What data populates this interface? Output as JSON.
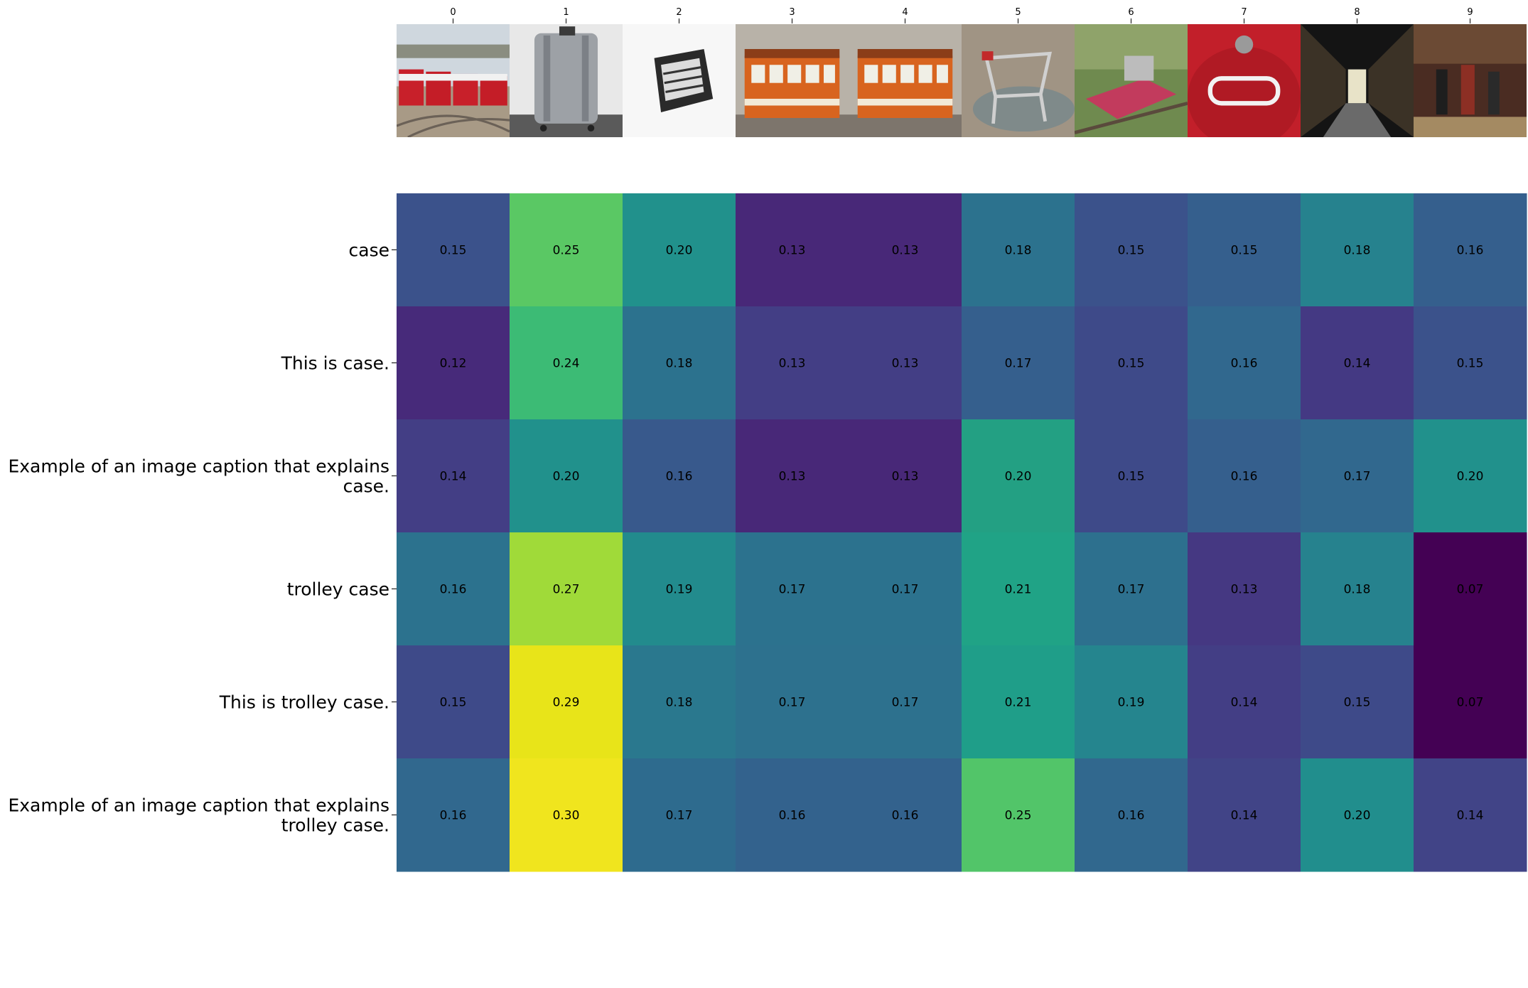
{
  "chart_data": {
    "type": "heatmap",
    "title": "",
    "xlabel": "",
    "ylabel": "",
    "colormap": "viridis",
    "value_range": [
      0.07,
      0.3
    ],
    "columns": [
      "0",
      "1",
      "2",
      "3",
      "4",
      "5",
      "6",
      "7",
      "8",
      "9"
    ],
    "column_images": [
      "red-trams-in-depot",
      "silver-suitcase",
      "black-white-sketch-of-box",
      "orange-streetcar",
      "orange-streetcar",
      "shopping-cart-in-puddle",
      "red-rail-trolley-on-tracks",
      "red-tee-train-nose",
      "museum-display-corridor",
      "renaissance-painting"
    ],
    "rows": [
      "case",
      "This is case.",
      "Example of an image caption that explains case.",
      "trolley case",
      "This is trolley case.",
      "Example of an image caption that explains trolley case."
    ],
    "row_label_lines": [
      [
        "case"
      ],
      [
        "This is case."
      ],
      [
        "Example of an image caption that explains",
        "case."
      ],
      [
        "trolley case"
      ],
      [
        "This is trolley case."
      ],
      [
        "Example of an image caption that explains",
        "trolley case."
      ]
    ],
    "values": [
      [
        0.15,
        0.25,
        0.2,
        0.13,
        0.13,
        0.18,
        0.15,
        0.15,
        0.18,
        0.16
      ],
      [
        0.12,
        0.24,
        0.18,
        0.13,
        0.13,
        0.17,
        0.15,
        0.16,
        0.14,
        0.15
      ],
      [
        0.14,
        0.2,
        0.16,
        0.13,
        0.13,
        0.2,
        0.15,
        0.16,
        0.17,
        0.2
      ],
      [
        0.16,
        0.27,
        0.19,
        0.17,
        0.17,
        0.21,
        0.17,
        0.13,
        0.18,
        0.07
      ],
      [
        0.15,
        0.29,
        0.18,
        0.17,
        0.17,
        0.21,
        0.19,
        0.14,
        0.15,
        0.07
      ],
      [
        0.16,
        0.3,
        0.17,
        0.16,
        0.16,
        0.25,
        0.16,
        0.14,
        0.2,
        0.14
      ]
    ],
    "cell_colors": [
      [
        "#3b528b",
        "#5ac864",
        "#21918c",
        "#482878",
        "#482878",
        "#2c728e",
        "#3b528b",
        "#355f8d",
        "#26828e",
        "#355f8d"
      ],
      [
        "#472a7a",
        "#3cbb75",
        "#2c728e",
        "#433e85",
        "#433e85",
        "#355f8d",
        "#3e4a89",
        "#31688e",
        "#443983",
        "#3b528b"
      ],
      [
        "#433e85",
        "#21918c",
        "#38598c",
        "#482878",
        "#482878",
        "#23a083",
        "#3e4a89",
        "#355f8d",
        "#31688e",
        "#21918c"
      ],
      [
        "#2c728e",
        "#a0da39",
        "#228b8d",
        "#2c728e",
        "#2c728e",
        "#20a386",
        "#2d708e",
        "#453882",
        "#26828e",
        "#440154"
      ],
      [
        "#3e4a89",
        "#e8e419",
        "#2a788e",
        "#2d718e",
        "#2d718e",
        "#1f9e89",
        "#25858e",
        "#433e85",
        "#3e4a89",
        "#440154"
      ],
      [
        "#31688e",
        "#f0e51e",
        "#2e6b8e",
        "#33628d",
        "#33628d",
        "#52c569",
        "#31688e",
        "#414487",
        "#218e8d",
        "#414487"
      ]
    ]
  }
}
